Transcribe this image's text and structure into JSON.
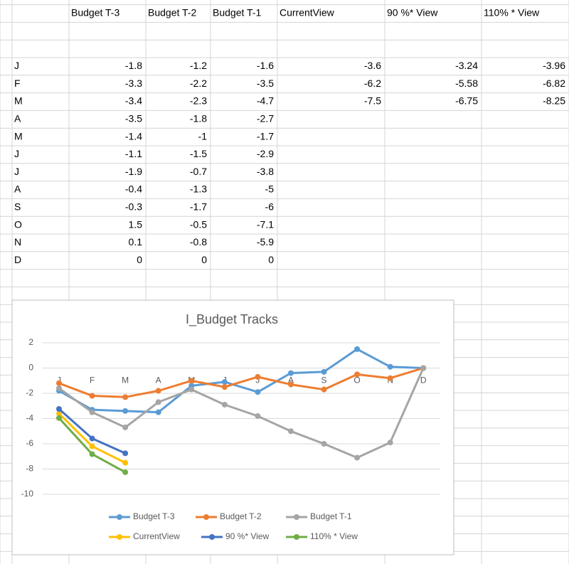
{
  "chart_data": {
    "type": "line",
    "title": "I_Budget Tracks",
    "categories": [
      "J",
      "F",
      "M",
      "A",
      "M",
      "J",
      "J",
      "A",
      "S",
      "O",
      "N",
      "D"
    ],
    "series": [
      {
        "name": "Budget T-3",
        "color": "#5b9bd5",
        "values": [
          -1.8,
          -3.3,
          -3.4,
          -3.5,
          -1.4,
          -1.1,
          -1.9,
          -0.4,
          -0.3,
          1.5,
          0.1,
          0
        ]
      },
      {
        "name": "Budget T-2",
        "color": "#ed7d31",
        "values": [
          -1.2,
          -2.2,
          -2.3,
          -1.8,
          -1,
          -1.5,
          -0.7,
          -1.3,
          -1.7,
          -0.5,
          -0.8,
          0
        ]
      },
      {
        "name": "Budget T-1",
        "color": "#a5a5a5",
        "values": [
          -1.6,
          -3.5,
          -4.7,
          -2.7,
          -1.7,
          -2.9,
          -3.8,
          -5,
          -6,
          -7.1,
          -5.9,
          0
        ]
      },
      {
        "name": "CurrentView",
        "color": "#ffc000",
        "values": [
          -3.6,
          -6.2,
          -7.5,
          null,
          null,
          null,
          null,
          null,
          null,
          null,
          null,
          null
        ]
      },
      {
        "name": "90 %* View",
        "color": "#4472c4",
        "values": [
          -3.24,
          -5.58,
          -6.75,
          null,
          null,
          null,
          null,
          null,
          null,
          null,
          null,
          null
        ]
      },
      {
        "name": "110% * View",
        "color": "#70ad47",
        "values": [
          -3.96,
          -6.82,
          -8.25,
          null,
          null,
          null,
          null,
          null,
          null,
          null,
          null,
          null
        ]
      }
    ],
    "ylim": [
      -10,
      2
    ],
    "yticks": [
      -10,
      -8,
      -6,
      -4,
      -2,
      0,
      2
    ],
    "grid": true,
    "legend": "bottom"
  }
}
